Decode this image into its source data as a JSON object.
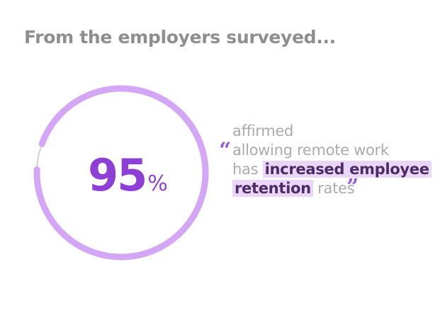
{
  "heading": "From the employers surveyed...",
  "chart_data": {
    "type": "pie",
    "subtype": "donut",
    "value": 95,
    "max": 100,
    "unit": "%",
    "title": "",
    "labels": [
      "95%"
    ],
    "colors": {
      "filled": "#d3a7f5",
      "remaining": "#d2d2d2",
      "label": "#8d3fd6"
    }
  },
  "stat": {
    "number": "95",
    "unit": "%"
  },
  "quote": {
    "open_mark": "“",
    "close_mark": "”",
    "line1": "affirmed",
    "line2": "allowing remote work",
    "line3_plain": "has",
    "line3_highlight": "increased employee",
    "line4_highlight": "retention",
    "line4_plain": "rates"
  },
  "colors": {
    "heading": "#8e8e8e",
    "highlight_bg": "#ead7f7",
    "highlight_text": "#4c2a66",
    "quote_text": "#ababab",
    "quote_mark": "#9b59e0"
  }
}
